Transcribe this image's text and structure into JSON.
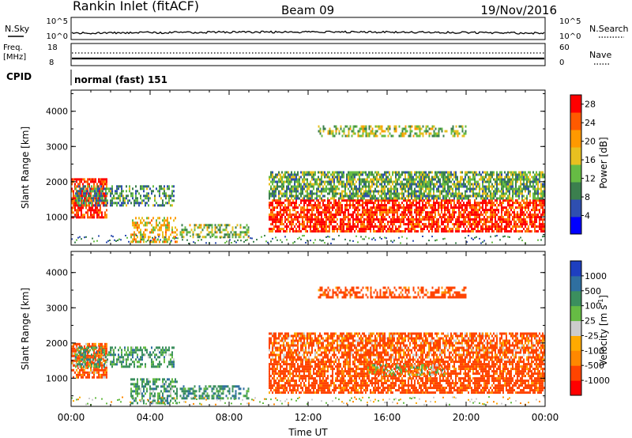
{
  "header": {
    "station": "Rankin Inlet (fitACF)",
    "beam": "Beam 09",
    "date": "19/Nov/2016"
  },
  "summary_panels": {
    "nsky_label": "N.Sky",
    "nsearch_label": "N.Search",
    "count_ticks": [
      "10^5",
      "10^0"
    ],
    "freq_label": "Freq.",
    "freq_unit": "[MHz]",
    "freq_ticks": [
      "18",
      "8"
    ],
    "nave_label": "Nave",
    "nave_ticks": [
      "60",
      "0"
    ],
    "cpid_label": "CPID",
    "cpid_value": "normal (fast) 151"
  },
  "colors": {
    "power_scale": [
      "#0000ff",
      "#2f4fb0",
      "#3b7f4e",
      "#66bb44",
      "#e8c020",
      "#ff9900",
      "#ff5a00",
      "#ff0000"
    ],
    "velocity_scale": [
      "#ff0000",
      "#ff4400",
      "#ff8800",
      "#ffaa00",
      "#cccccc",
      "#66bb44",
      "#3b8f5e",
      "#2f6fa0",
      "#1e3fc0"
    ]
  },
  "chart_data": [
    {
      "type": "heatmap",
      "panel": "power",
      "ylabel": "Slant Range [km]",
      "y_ticks": [
        "4000",
        "3000",
        "2000",
        "1000"
      ],
      "ylim": [
        200,
        4600
      ],
      "x_ticks": [
        "00:00",
        "04:00",
        "08:00",
        "12:00",
        "16:00",
        "20:00",
        "00:00"
      ],
      "xlim": [
        0,
        24
      ],
      "colorbar": {
        "label": "Power [dB]",
        "ticks": [
          "28",
          "24",
          "20",
          "16",
          "12",
          "8",
          "4"
        ],
        "range": [
          0,
          30
        ]
      },
      "regions": [
        {
          "t": [
            0.0,
            1.8
          ],
          "r": [
            1000,
            2100
          ],
          "level": 27
        },
        {
          "t": [
            0.2,
            5.2
          ],
          "r": [
            1300,
            1900
          ],
          "level": 10
        },
        {
          "t": [
            3.0,
            5.4
          ],
          "r": [
            300,
            1000
          ],
          "level": 18
        },
        {
          "t": [
            5.5,
            9.0
          ],
          "r": [
            400,
            800
          ],
          "level": 14
        },
        {
          "t": [
            10.0,
            24.0
          ],
          "r": [
            600,
            1500
          ],
          "level": 27
        },
        {
          "t": [
            10.0,
            24.0
          ],
          "r": [
            1500,
            2300
          ],
          "level": 12
        },
        {
          "t": [
            12.5,
            20.0
          ],
          "r": [
            3300,
            3600
          ],
          "level": 14
        }
      ]
    },
    {
      "type": "heatmap",
      "panel": "velocity",
      "ylabel": "Slant Range [km]",
      "y_ticks": [
        "4000",
        "3000",
        "2000",
        "1000"
      ],
      "ylim": [
        200,
        4600
      ],
      "x_ticks": [
        "00:00",
        "04:00",
        "08:00",
        "12:00",
        "16:00",
        "20:00",
        "00:00"
      ],
      "xlim": [
        0,
        24
      ],
      "xlabel": "Time UT",
      "colorbar": {
        "label": "Velocity [m s",
        "label_exponent": "-1",
        "label_close": "]",
        "ticks": [
          "1000",
          "500",
          "100",
          "25",
          "-25",
          "-100",
          "-500",
          "-1000"
        ],
        "range": [
          -1000,
          1000
        ]
      },
      "regions": [
        {
          "t": [
            0.0,
            1.8
          ],
          "r": [
            1000,
            2000
          ],
          "level": -150
        },
        {
          "t": [
            0.2,
            5.2
          ],
          "r": [
            1300,
            1900
          ],
          "level": 150
        },
        {
          "t": [
            3.0,
            5.4
          ],
          "r": [
            300,
            1000
          ],
          "level": 150
        },
        {
          "t": [
            5.5,
            9.0
          ],
          "r": [
            400,
            800
          ],
          "level": 200
        },
        {
          "t": [
            10.0,
            24.0
          ],
          "r": [
            600,
            1500
          ],
          "level": -200
        },
        {
          "t": [
            15.0,
            19.0
          ],
          "r": [
            1100,
            1400
          ],
          "level": 0
        },
        {
          "t": [
            10.0,
            24.0
          ],
          "r": [
            1500,
            2300
          ],
          "level": -150
        },
        {
          "t": [
            12.5,
            20.0
          ],
          "r": [
            3300,
            3600
          ],
          "level": -200
        }
      ]
    }
  ]
}
